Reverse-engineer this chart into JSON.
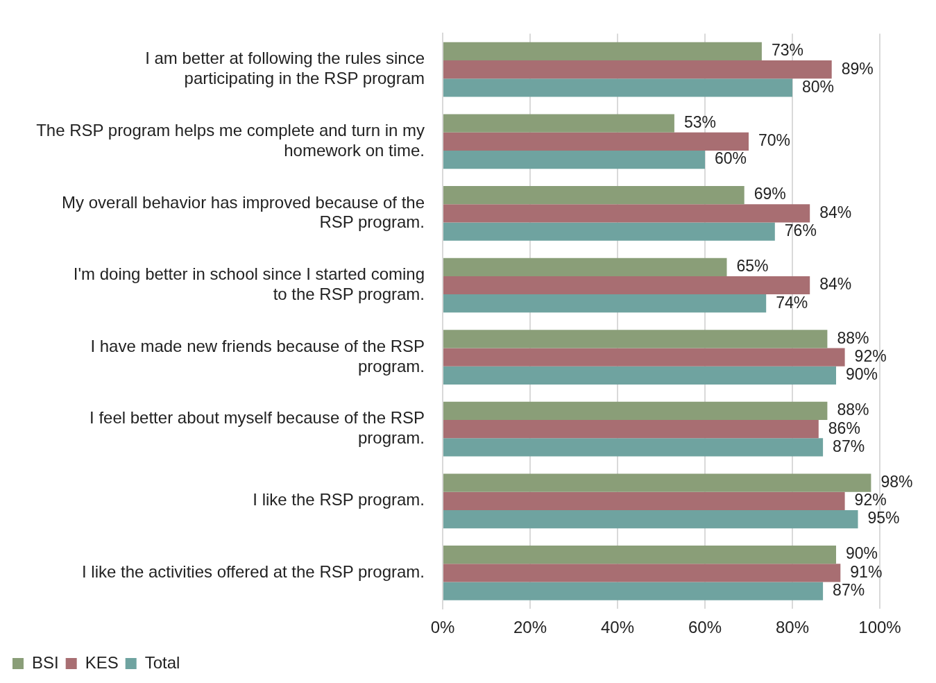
{
  "chart_data": {
    "type": "bar",
    "orientation": "horizontal",
    "categories": [
      "I am better at following the rules since participating in the RSP program",
      "The RSP program helps me complete and turn in my homework on time.",
      "My overall behavior has improved because of the RSP program.",
      "I'm doing better in school since I started coming to the RSP program.",
      "I have made new friends because of the RSP program.",
      "I feel better about myself because of the RSP program.",
      "I like the RSP program.",
      "I like the activities offered at the RSP program."
    ],
    "series": [
      {
        "name": "BSI",
        "color": "#8a9e78",
        "values": [
          73,
          53,
          69,
          65,
          88,
          88,
          98,
          90
        ],
        "value_labels": [
          "73%",
          "53%",
          "69%",
          "65%",
          "88%",
          "88%",
          "98%",
          "90%"
        ]
      },
      {
        "name": "KES",
        "color": "#a86e72",
        "values": [
          89,
          70,
          84,
          84,
          92,
          86,
          92,
          91
        ],
        "value_labels": [
          "89%",
          "70%",
          "84%",
          "84%",
          "92%",
          "86%",
          "92%",
          "91%"
        ]
      },
      {
        "name": "Total",
        "color": "#6fa3a0",
        "values": [
          80,
          60,
          76,
          74,
          90,
          87,
          95,
          87
        ],
        "value_labels": [
          "80%",
          "60%",
          "76%",
          "74%",
          "90%",
          "87%",
          "95%",
          "87%"
        ]
      }
    ],
    "xlim": [
      0,
      100
    ],
    "xticks": [
      {
        "value": 0,
        "label": "0%"
      },
      {
        "value": 20,
        "label": "20%"
      },
      {
        "value": 40,
        "label": "40%"
      },
      {
        "value": 60,
        "label": "60%"
      },
      {
        "value": 80,
        "label": "80%"
      },
      {
        "value": 100,
        "label": "100%"
      }
    ],
    "grid": "x",
    "legend": "bottom left"
  }
}
